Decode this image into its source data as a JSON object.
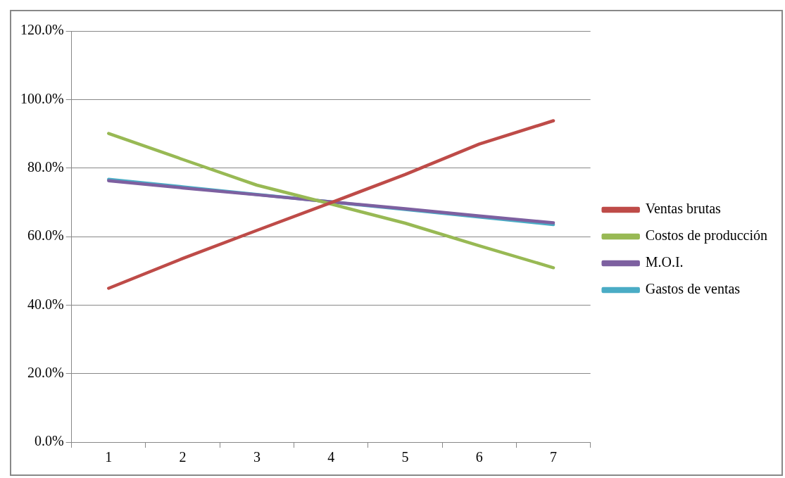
{
  "chart_data": {
    "type": "line",
    "categories": [
      "1",
      "2",
      "3",
      "4",
      "5",
      "6",
      "7"
    ],
    "series": [
      {
        "name": "Ventas brutas",
        "color": "#be4b48",
        "values": [
          44.9,
          53.6,
          61.8,
          69.9,
          78.1,
          87.0,
          93.8
        ]
      },
      {
        "name": "Costos de producción",
        "color": "#98b954",
        "values": [
          90.1,
          82.5,
          75.0,
          69.5,
          63.9,
          57.3,
          50.9
        ]
      },
      {
        "name": "M.O.I.",
        "color": "#7d60a0",
        "values": [
          76.3,
          74.2,
          72.2,
          70.1,
          68.1,
          66.0,
          64.0
        ]
      },
      {
        "name": "Gastos de ventas",
        "color": "#4aacc5",
        "values": [
          76.7,
          74.5,
          72.3,
          70.1,
          67.9,
          65.7,
          63.5
        ]
      }
    ],
    "ylim": [
      0,
      120
    ],
    "yticks": [
      {
        "value": 0,
        "label": "0.0%"
      },
      {
        "value": 20,
        "label": "20.0%"
      },
      {
        "value": 40,
        "label": "40.0%"
      },
      {
        "value": 60,
        "label": "60.0%"
      },
      {
        "value": 80,
        "label": "80.0%"
      },
      {
        "value": 100,
        "label": "100.0%"
      },
      {
        "value": 120,
        "label": "120.0%"
      }
    ],
    "grid": "y",
    "legend": "right",
    "marker": "none",
    "line_style": "solid"
  }
}
